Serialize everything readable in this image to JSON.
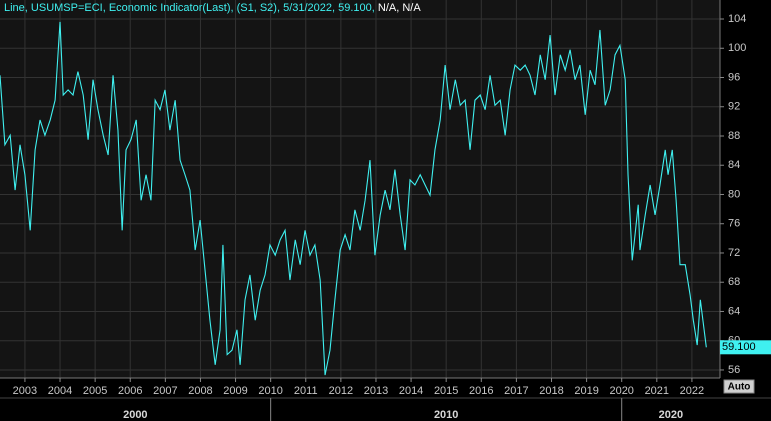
{
  "chart_data": {
    "type": "line",
    "x": [
      2002.29,
      2002.43,
      2002.58,
      2002.72,
      2002.86,
      2003.0,
      2003.15,
      2003.29,
      2003.43,
      2003.57,
      2003.72,
      2003.86,
      2004.0,
      2004.09,
      2004.23,
      2004.37,
      2004.51,
      2004.66,
      2004.8,
      2004.94,
      2005.08,
      2005.23,
      2005.37,
      2005.51,
      2005.65,
      2005.77,
      2005.88,
      2006.02,
      2006.17,
      2006.31,
      2006.45,
      2006.59,
      2006.71,
      2006.85,
      2006.99,
      2007.13,
      2007.28,
      2007.42,
      2007.56,
      2007.7,
      2007.85,
      2007.99,
      2008.13,
      2008.27,
      2008.42,
      2008.56,
      2008.64,
      2008.76,
      2008.9,
      2009.04,
      2009.13,
      2009.27,
      2009.41,
      2009.56,
      2009.7,
      2009.84,
      2009.98,
      2010.13,
      2010.27,
      2010.41,
      2010.55,
      2010.7,
      2010.84,
      2010.98,
      2011.12,
      2011.26,
      2011.41,
      2011.55,
      2011.69,
      2011.83,
      2011.98,
      2012.12,
      2012.26,
      2012.4,
      2012.55,
      2012.69,
      2012.83,
      2012.97,
      2013.12,
      2013.26,
      2013.4,
      2013.54,
      2013.69,
      2013.83,
      2013.97,
      2014.11,
      2014.26,
      2014.4,
      2014.54,
      2014.68,
      2014.83,
      2014.97,
      2015.11,
      2015.26,
      2015.4,
      2015.54,
      2015.68,
      2015.82,
      2015.97,
      2016.11,
      2016.25,
      2016.39,
      2016.54,
      2016.68,
      2016.82,
      2016.96,
      2017.11,
      2017.25,
      2017.39,
      2017.53,
      2017.68,
      2017.82,
      2017.96,
      2018.1,
      2018.25,
      2018.39,
      2018.53,
      2018.67,
      2018.81,
      2018.96,
      2019.1,
      2019.24,
      2019.38,
      2019.53,
      2019.67,
      2019.81,
      2019.95,
      2020.1,
      2020.18,
      2020.3,
      2020.38,
      2020.47,
      2020.52,
      2020.67,
      2020.81,
      2020.95,
      2021.09,
      2021.24,
      2021.32,
      2021.44,
      2021.55,
      2021.66,
      2021.81,
      2021.95,
      2022.04,
      2022.15,
      2022.24,
      2022.41
    ],
    "series": [
      {
        "name": "Line, USUMSP=ECI, Economic Indicator(Last), (S1, S2), 5/31/2022, 59.100,",
        "color": "#3ff0f0",
        "values": [
          96.3,
          86.8,
          88.1,
          80.6,
          86.8,
          82.7,
          75.1,
          86.1,
          90.2,
          88.1,
          90.2,
          92.9,
          103.6,
          93.6,
          94.3,
          93.6,
          96.8,
          93.6,
          87.5,
          95.7,
          91.6,
          88.1,
          85.4,
          96.3,
          88.8,
          75.1,
          86.1,
          87.5,
          90.2,
          79.2,
          82.7,
          79.2,
          92.9,
          91.6,
          94.3,
          88.8,
          92.9,
          84.7,
          82.7,
          80.6,
          72.4,
          76.5,
          69.7,
          62.8,
          56.7,
          61.5,
          73.1,
          58.1,
          58.7,
          61.5,
          56.7,
          65.6,
          69.0,
          62.8,
          66.9,
          69.0,
          73.1,
          71.7,
          73.8,
          75.1,
          68.3,
          73.8,
          70.4,
          75.1,
          71.7,
          73.1,
          68.3,
          55.3,
          58.7,
          65.6,
          72.4,
          74.5,
          72.4,
          77.9,
          75.1,
          79.2,
          84.7,
          71.7,
          77.2,
          80.6,
          77.9,
          83.4,
          77.2,
          72.4,
          82.0,
          81.3,
          82.7,
          81.3,
          79.9,
          86.1,
          90.2,
          97.7,
          91.6,
          95.7,
          92.2,
          92.9,
          86.1,
          92.9,
          93.6,
          91.6,
          96.3,
          92.2,
          92.9,
          88.1,
          94.3,
          97.7,
          97.0,
          97.7,
          96.3,
          93.6,
          99.1,
          95.7,
          101.8,
          93.6,
          99.1,
          97.0,
          99.8,
          95.7,
          97.7,
          90.9,
          97.0,
          95.0,
          102.5,
          92.2,
          94.3,
          99.1,
          100.4,
          95.7,
          82.7,
          71.0,
          74.5,
          78.6,
          72.4,
          77.2,
          81.3,
          77.2,
          81.3,
          86.1,
          82.7,
          86.1,
          79.2,
          70.4,
          70.4,
          66.2,
          62.8,
          59.4,
          65.6,
          59.1
        ]
      }
    ],
    "legend_suffix": "N/A, N/A",
    "last_value_label": "59.100",
    "xlim": [
      2002.29,
      2022.8
    ],
    "ylim": [
      54.9,
      106.6
    ],
    "xticks": [
      2003,
      2004,
      2005,
      2006,
      2007,
      2008,
      2009,
      2010,
      2011,
      2012,
      2013,
      2014,
      2015,
      2016,
      2017,
      2018,
      2019,
      2020,
      2021,
      2022
    ],
    "yticks": [
      56,
      60,
      64,
      68,
      72,
      76,
      80,
      84,
      88,
      92,
      96,
      100,
      104
    ],
    "x_groups": [
      2000,
      2010,
      2020
    ],
    "grid": true,
    "button": "Auto"
  }
}
